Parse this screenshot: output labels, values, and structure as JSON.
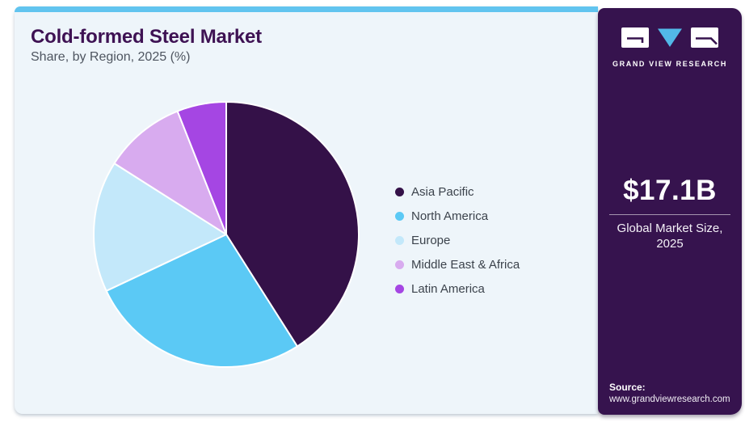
{
  "header": {
    "title": "Cold-formed Steel Market",
    "subtitle": "Share, by Region, 2025 (%)"
  },
  "chart_data": {
    "type": "pie",
    "title": "Cold-formed Steel Market Share, by Region, 2025 (%)",
    "categories": [
      "Asia Pacific",
      "North America",
      "Europe",
      "Middle East & Africa",
      "Latin America"
    ],
    "values": [
      41,
      27,
      16,
      10,
      6
    ],
    "unit": "%",
    "colors": [
      "#341148",
      "#5bc9f5",
      "#c3e8fa",
      "#d8abef",
      "#a546e3"
    ],
    "start_angle_deg": 0,
    "direction": "clockwise",
    "legend_position": "right"
  },
  "sidebar": {
    "logo_text": "GRAND VIEW RESEARCH",
    "market_size_value": "$17.1B",
    "market_size_label": "Global Market Size, 2025",
    "source_label": "Source:",
    "source_url": "www.grandviewresearch.com",
    "background_color": "#36134e",
    "accent_color": "#52b8e8"
  },
  "theme": {
    "card_background": "#eef5fa",
    "top_strip_color": "#61c4ef",
    "title_color": "#3e1253",
    "legend_text_color": "#3c434c"
  }
}
